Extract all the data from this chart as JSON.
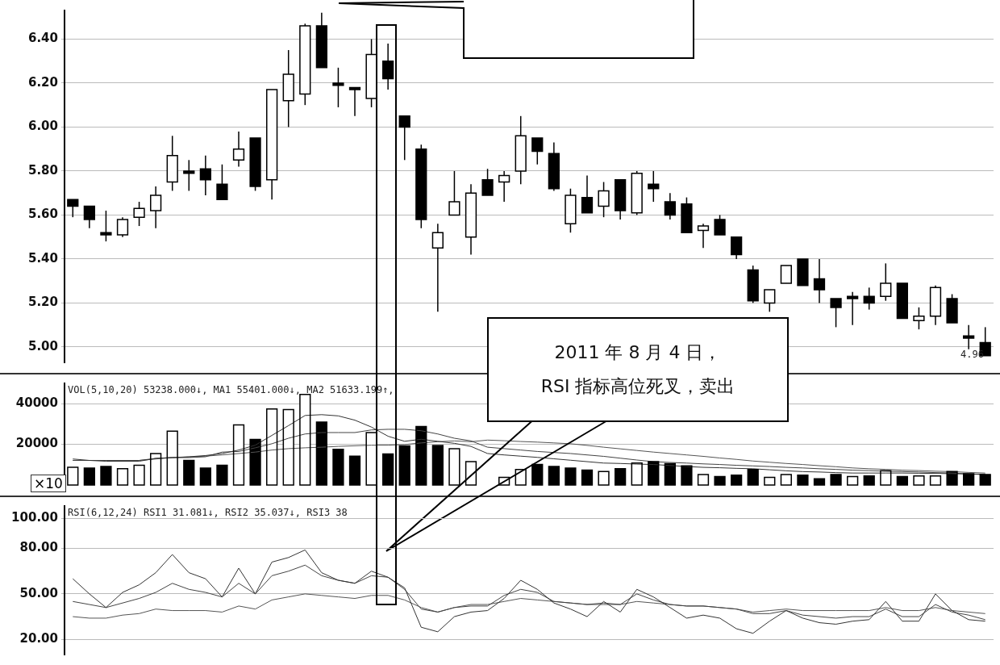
{
  "chart_data": [
    {
      "type": "candlestick",
      "categories": [
        null,
        null,
        null,
        null,
        null,
        null,
        null,
        null,
        null,
        null,
        null,
        null,
        null,
        null,
        null,
        null,
        null,
        null,
        null,
        null,
        null,
        null,
        null,
        null,
        null,
        null,
        null,
        null,
        null,
        null,
        null,
        null,
        null,
        null,
        null,
        null,
        null,
        null,
        null,
        null,
        null,
        null,
        null,
        null,
        null,
        null,
        null,
        null,
        null,
        null,
        null,
        null,
        null,
        null,
        null,
        null
      ],
      "ohlc": [
        [
          5.67,
          5.67,
          5.59,
          5.64
        ],
        [
          5.64,
          5.64,
          5.54,
          5.58
        ],
        [
          5.52,
          5.62,
          5.48,
          5.51
        ],
        [
          5.51,
          5.59,
          5.5,
          5.58
        ],
        [
          5.59,
          5.66,
          5.55,
          5.63
        ],
        [
          5.62,
          5.73,
          5.54,
          5.69
        ],
        [
          5.75,
          5.96,
          5.71,
          5.87
        ],
        [
          5.8,
          5.85,
          5.71,
          5.79
        ],
        [
          5.81,
          5.87,
          5.69,
          5.76
        ],
        [
          5.74,
          5.83,
          5.67,
          5.67
        ],
        [
          5.85,
          5.98,
          5.82,
          5.9
        ],
        [
          5.95,
          5.95,
          5.71,
          5.73
        ],
        [
          5.76,
          6.17,
          5.67,
          6.17
        ],
        [
          6.12,
          6.35,
          6.0,
          6.24
        ],
        [
          6.15,
          6.47,
          6.1,
          6.46
        ],
        [
          6.46,
          6.52,
          6.27,
          6.27
        ],
        [
          6.2,
          6.27,
          6.09,
          6.19
        ],
        [
          6.18,
          6.18,
          6.05,
          6.17
        ],
        [
          6.13,
          6.4,
          6.09,
          6.33
        ],
        [
          6.3,
          6.38,
          6.17,
          6.22
        ],
        [
          6.05,
          6.05,
          5.85,
          6.0
        ],
        [
          5.9,
          5.92,
          5.54,
          5.58
        ],
        [
          5.45,
          5.56,
          5.16,
          5.52
        ],
        [
          5.6,
          5.8,
          5.6,
          5.66
        ],
        [
          5.5,
          5.74,
          5.42,
          5.7
        ],
        [
          5.76,
          5.81,
          5.69,
          5.69
        ],
        [
          5.75,
          5.8,
          5.66,
          5.78
        ],
        [
          5.8,
          6.05,
          5.74,
          5.96
        ],
        [
          5.95,
          5.95,
          5.83,
          5.89
        ],
        [
          5.88,
          5.93,
          5.71,
          5.72
        ],
        [
          5.56,
          5.72,
          5.52,
          5.69
        ],
        [
          5.68,
          5.78,
          5.61,
          5.61
        ],
        [
          5.64,
          5.75,
          5.59,
          5.71
        ],
        [
          5.76,
          5.76,
          5.58,
          5.62
        ],
        [
          5.61,
          5.8,
          5.6,
          5.79
        ],
        [
          5.74,
          5.8,
          5.66,
          5.72
        ],
        [
          5.66,
          5.7,
          5.58,
          5.6
        ],
        [
          5.65,
          5.68,
          5.52,
          5.52
        ],
        [
          5.53,
          5.56,
          5.45,
          5.55
        ],
        [
          5.58,
          5.6,
          5.51,
          5.51
        ],
        [
          5.5,
          5.5,
          5.4,
          5.42
        ],
        [
          5.35,
          5.37,
          5.2,
          5.21
        ],
        [
          5.2,
          5.26,
          5.16,
          5.26
        ],
        [
          5.29,
          5.37,
          5.29,
          5.37
        ],
        [
          5.4,
          5.4,
          5.28,
          5.28
        ],
        [
          5.31,
          5.4,
          5.2,
          5.26
        ],
        [
          5.22,
          5.22,
          5.09,
          5.18
        ],
        [
          5.23,
          5.25,
          5.1,
          5.22
        ],
        [
          5.23,
          5.27,
          5.17,
          5.2
        ],
        [
          5.23,
          5.38,
          5.21,
          5.29
        ],
        [
          5.29,
          5.29,
          5.13,
          5.13
        ],
        [
          5.12,
          5.18,
          5.08,
          5.14
        ],
        [
          5.14,
          5.28,
          5.1,
          5.27
        ],
        [
          5.22,
          5.24,
          5.11,
          5.11
        ],
        [
          5.05,
          5.1,
          4.99,
          5.04
        ],
        [
          5.02,
          5.09,
          4.96,
          4.96
        ]
      ],
      "ylim": [
        4.93,
        6.53
      ],
      "yticks": [
        {
          "value": 5,
          "label": "5.00"
        },
        {
          "value": 5.2,
          "label": "5.20"
        },
        {
          "value": 5.4,
          "label": "5.40"
        },
        {
          "value": 5.6,
          "label": "5.60"
        },
        {
          "value": 5.8,
          "label": "5.80"
        },
        {
          "value": 6,
          "label": "6.00"
        },
        {
          "value": 6.2,
          "label": "6.20"
        },
        {
          "value": 6.4,
          "label": "6.40"
        }
      ],
      "grid": "y",
      "annotations": [
        "4.96"
      ]
    },
    {
      "type": "bar",
      "categories": [
        null,
        null,
        null,
        null,
        null,
        null,
        null,
        null,
        null,
        null,
        null,
        null,
        null,
        null,
        null,
        null,
        null,
        null,
        null,
        null,
        null,
        null,
        null,
        null,
        null,
        null,
        null,
        null,
        null,
        null,
        null,
        null,
        null,
        null,
        null,
        null,
        null,
        null,
        null,
        null,
        null,
        null,
        null,
        null,
        null,
        null,
        null,
        null,
        null,
        null,
        null,
        null,
        null,
        null,
        null,
        null
      ],
      "series": [
        {
          "type": "bar",
          "values": [
            8700,
            8300,
            9100,
            8000,
            9700,
            15500,
            26500,
            12100,
            8300,
            9700,
            29600,
            22400,
            37400,
            37100,
            44500,
            31000,
            17600,
            14200,
            25800,
            15300,
            19200,
            28800,
            19400,
            17900,
            11500,
            null,
            3800,
            7600,
            10100,
            9100,
            8300,
            7300,
            6600,
            8000,
            10800,
            11500,
            10500,
            9400,
            5200,
            4200,
            4900,
            7600,
            3800,
            5200,
            4900,
            3100,
            5200,
            4200,
            4500,
            7000,
            4200,
            4500,
            4500,
            6600,
            5600,
            5200
          ],
          "colors": [
            "#ffffff",
            "#000000",
            "#000000",
            "#ffffff",
            "#ffffff",
            "#ffffff",
            "#ffffff",
            "#000000",
            "#000000",
            "#000000",
            "#ffffff",
            "#000000",
            "#ffffff",
            "#ffffff",
            "#ffffff",
            "#000000",
            "#000000",
            "#000000",
            "#ffffff",
            "#000000",
            "#000000",
            "#000000",
            "#000000",
            "#ffffff",
            "#ffffff",
            "#000000",
            "#ffffff",
            "#ffffff",
            "#000000",
            "#000000",
            "#000000",
            "#000000",
            "#ffffff",
            "#000000",
            "#ffffff",
            "#000000",
            "#000000",
            "#000000",
            "#ffffff",
            "#000000",
            "#000000",
            "#000000",
            "#ffffff",
            "#ffffff",
            "#000000",
            "#000000",
            "#000000",
            "#ffffff",
            "#000000",
            "#ffffff",
            "#000000",
            "#ffffff",
            "#ffffff",
            "#000000",
            "#000000",
            "#000000"
          ]
        },
        {
          "type": "line",
          "color": "#333333",
          "values": [
            12800,
            12100,
            11700,
            11700,
            11700,
            13100,
            13500,
            13900,
            14500,
            15500,
            17200,
            19600,
            24400,
            29200,
            34200,
            34600,
            34000,
            31900,
            28500,
            24000,
            21500,
            22500,
            21500,
            20500,
            19000,
            15500,
            14800,
            14200,
            13600,
            12900,
            12200,
            11500,
            10800,
            10600,
            10300,
            10100,
            9600,
            9100,
            8700,
            8500,
            8200,
            8000,
            7500,
            7000,
            6600,
            6400,
            6100,
            5900,
            5900,
            5900,
            5900,
            5800,
            5700,
            5600,
            5400,
            5200
          ]
        },
        {
          "type": "line",
          "color": "#444444",
          "values": [
            12100,
            12100,
            12100,
            12100,
            12100,
            13100,
            13500,
            13500,
            13900,
            16200,
            16500,
            18300,
            20300,
            23000,
            25100,
            25800,
            25800,
            25800,
            27100,
            27400,
            27400,
            26700,
            25100,
            23000,
            21700,
            18600,
            17900,
            17200,
            16500,
            16000,
            15500,
            14800,
            14100,
            13200,
            12300,
            11500,
            11100,
            10800,
            10400,
            10100,
            9700,
            9400,
            9100,
            8700,
            8400,
            8000,
            7700,
            7300,
            7100,
            6800,
            6600,
            6400,
            6100,
            5900,
            5500,
            5200
          ]
        },
        {
          "type": "line",
          "color": "#555555",
          "values": [
            12100,
            12100,
            12100,
            12100,
            12100,
            12800,
            13500,
            13800,
            14200,
            14800,
            15500,
            16200,
            17200,
            17900,
            18300,
            18600,
            19000,
            19300,
            19600,
            19600,
            19900,
            20700,
            21300,
            21700,
            21300,
            22100,
            21800,
            21400,
            21100,
            20700,
            20300,
            19500,
            18600,
            17800,
            17000,
            16200,
            15500,
            14800,
            14100,
            13300,
            12600,
            11800,
            11200,
            10600,
            10100,
            9500,
            9000,
            8400,
            8000,
            7700,
            7300,
            7100,
            6800,
            6600,
            6200,
            5900
          ]
        }
      ],
      "ylim": [
        0,
        50000
      ],
      "yticks": [
        20000,
        40000
      ],
      "ylabel": "×10",
      "grid": "y",
      "marker": "none",
      "annotations": [
        "VOL(5,10,20) 53238.000↓, MA1 55401.000↓, MA2 51633.199↑,",
        "2011 年 8 月 4 日，\nRSI 指标高位死叉，卖出"
      ]
    },
    {
      "type": "line",
      "categories": [
        null,
        null,
        null,
        null,
        null,
        null,
        null,
        null,
        null,
        null,
        null,
        null,
        null,
        null,
        null,
        null,
        null,
        null,
        null,
        null,
        null,
        null,
        null,
        null,
        null,
        null,
        null,
        null,
        null,
        null,
        null,
        null,
        null,
        null,
        null,
        null,
        null,
        null,
        null,
        null,
        null,
        null,
        null,
        null,
        null,
        null,
        null,
        null,
        null,
        null,
        null,
        null,
        null,
        null,
        null,
        null
      ],
      "series": [
        {
          "color": "#333333",
          "values": [
            60,
            50,
            41,
            51,
            56,
            64,
            76,
            64,
            60,
            48,
            67,
            50,
            71,
            74,
            79,
            64,
            59,
            57,
            65,
            61,
            54,
            28,
            25,
            35,
            38,
            39,
            47,
            59,
            53,
            44,
            40,
            35,
            45,
            38,
            53,
            48,
            41,
            34,
            36,
            34,
            27,
            24,
            32,
            39,
            34,
            31,
            30,
            32,
            33,
            45,
            32,
            32,
            50,
            39,
            33,
            32
          ]
        },
        {
          "color": "#444444",
          "values": [
            45,
            43,
            41,
            44,
            47,
            51,
            57,
            53,
            51,
            48,
            57,
            50,
            62,
            65,
            69,
            62,
            59,
            57,
            62,
            61,
            53,
            40,
            38,
            41,
            42,
            42,
            49,
            53,
            51,
            45,
            44,
            43,
            44,
            43,
            50,
            46,
            43,
            42,
            42,
            41,
            40,
            37,
            37,
            39,
            36,
            35,
            34,
            35,
            35,
            40,
            35,
            35,
            43,
            38,
            36,
            33
          ]
        },
        {
          "color": "#555555",
          "values": [
            35,
            34,
            34,
            36,
            37,
            40,
            39,
            39,
            39,
            38,
            42,
            40,
            46,
            48,
            50,
            49,
            48,
            47,
            49,
            49,
            46,
            41,
            38,
            41,
            43,
            43,
            45,
            47,
            46,
            45,
            44,
            43,
            43,
            43,
            45,
            44,
            43,
            42,
            42,
            41,
            40,
            38,
            39,
            40,
            39,
            39,
            39,
            39,
            39,
            41,
            39,
            39,
            41,
            39,
            38,
            37
          ]
        }
      ],
      "ylim": [
        10,
        108
      ],
      "yticks": [
        {
          "value": 20,
          "label": "20.00"
        },
        {
          "value": 50,
          "label": "50.00"
        },
        {
          "value": 80,
          "label": "80.00"
        },
        {
          "value": 100,
          "label": "100.00"
        }
      ],
      "grid": "y",
      "marker": "none",
      "annotations": [
        "RSI(6,12,24) RSI1 31.081↓, RSI2 35.037↓, RSI3 38"
      ]
    }
  ]
}
